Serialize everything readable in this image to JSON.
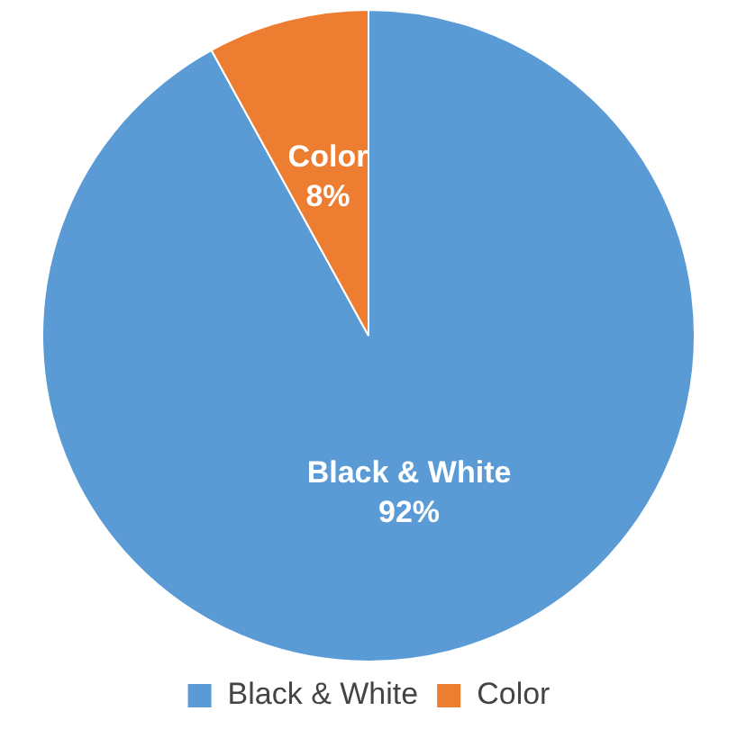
{
  "chart_data": {
    "type": "pie",
    "categories": [
      "Black & White",
      "Color"
    ],
    "values": [
      92,
      8
    ],
    "colors": [
      "#5b9bd5",
      "#ed7d31"
    ],
    "value_labels": [
      "92%",
      "8%"
    ],
    "legend": "bottom"
  }
}
